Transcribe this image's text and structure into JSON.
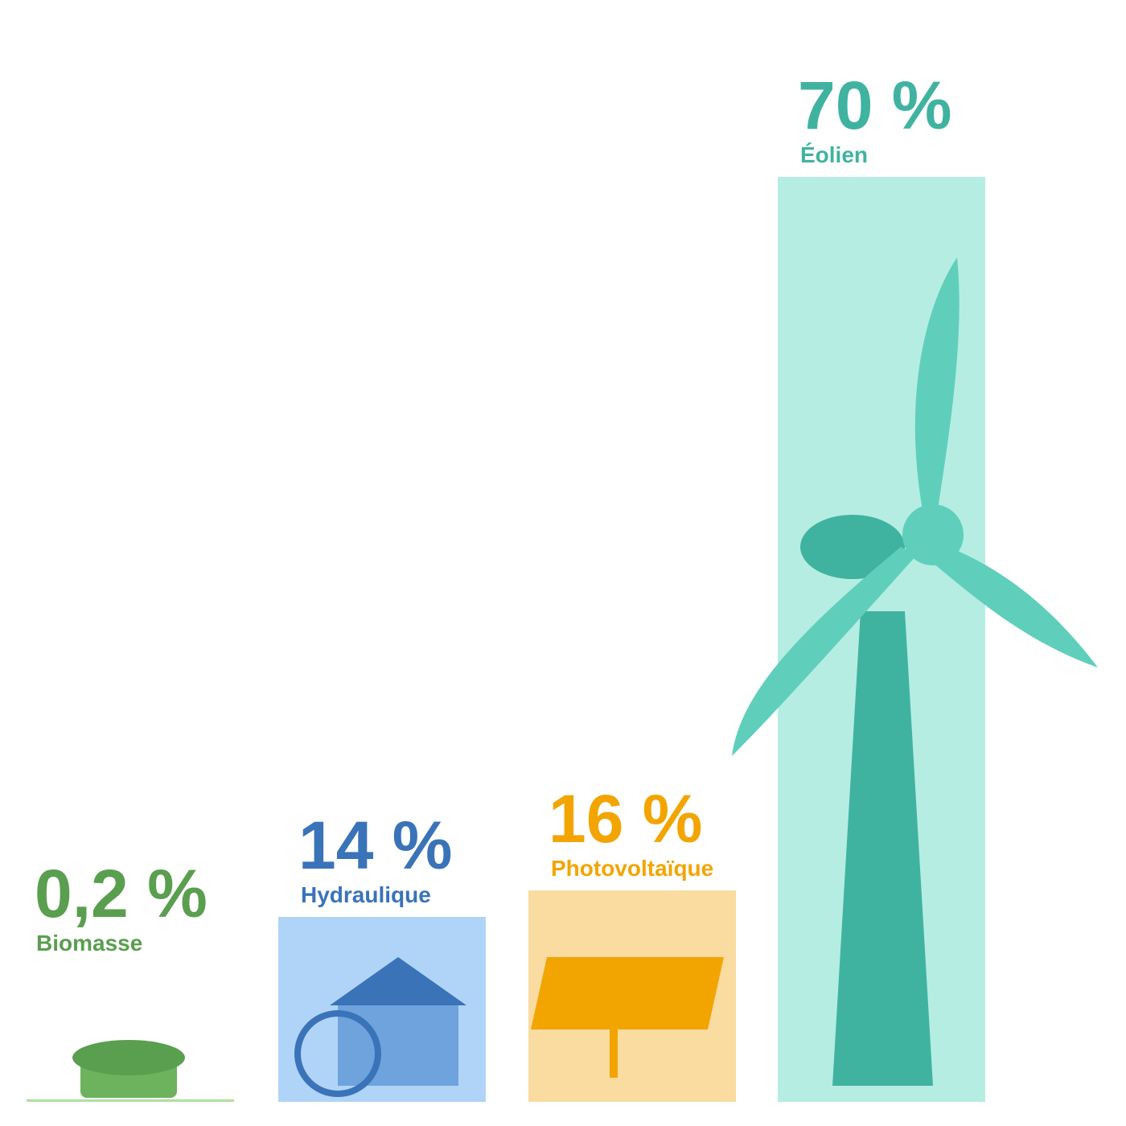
{
  "chart_data": {
    "type": "bar",
    "categories": [
      "Biomasse",
      "Hydraulique",
      "Photovoltaïque",
      "Éolien"
    ],
    "values": [
      0.2,
      14,
      16,
      70
    ],
    "value_labels": [
      "0,2 %",
      "14 %",
      "16 %",
      "70 %"
    ],
    "colors": [
      "#5a9e4f",
      "#3a73b8",
      "#f2a500",
      "#40b3a0"
    ],
    "bar_colors": [
      "#b2e0a3",
      "#b0d4f7",
      "#fadba0",
      "#b5ede3"
    ]
  }
}
